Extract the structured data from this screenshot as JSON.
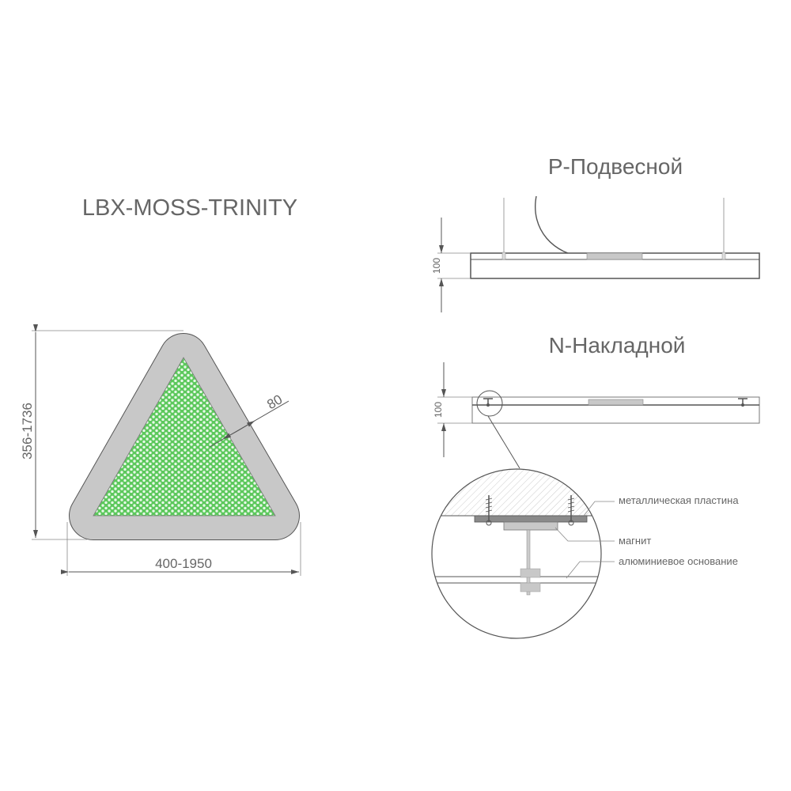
{
  "title": "LBX-MOSS-TRINITY",
  "dimensions": {
    "height": "356-1736",
    "width": "400-1950",
    "border": "80"
  },
  "pendant": {
    "title": "P-Подвесной",
    "height": "100"
  },
  "surface": {
    "title": "N-Накладной",
    "height": "100"
  },
  "detail": {
    "labels": [
      "металлическая пластина",
      "магнит",
      "алюминиевое основание"
    ]
  },
  "colors": {
    "frame": "#c8c8c8",
    "moss": "#5cc85c",
    "text": "#666666",
    "plate": "#8a8a8a"
  }
}
